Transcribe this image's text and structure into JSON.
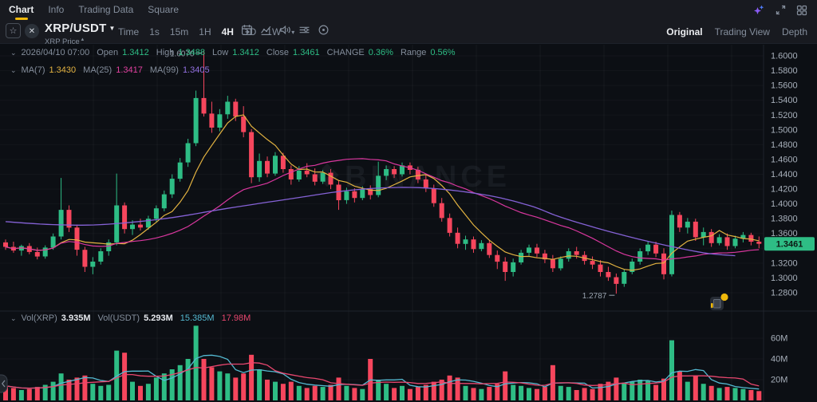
{
  "header": {
    "tabs": [
      {
        "label": "Chart",
        "active": true
      },
      {
        "label": "Info",
        "active": false
      },
      {
        "label": "Trading Data",
        "active": false
      },
      {
        "label": "Square",
        "active": false
      }
    ],
    "icons": [
      "ai-sparkle-icon",
      "resize-icon",
      "layout-grid-icon"
    ]
  },
  "toolbar": {
    "symbol": "XRP/USDT",
    "symbol_sub": "XRP Price",
    "intervals": [
      "Time",
      "1s",
      "15m",
      "1H",
      "4H",
      "1D",
      "1W"
    ],
    "active_interval": "4H",
    "icons": [
      "calendar-icon",
      "chart-style-icon",
      "sound-icon",
      "indicator-settings-icon",
      "target-icon"
    ],
    "view_modes": [
      {
        "label": "Original",
        "active": true
      },
      {
        "label": "Trading View",
        "active": false
      },
      {
        "label": "Depth",
        "active": false
      }
    ]
  },
  "ohlc": {
    "datetime": "2026/04/10 07:00",
    "open_label": "Open",
    "open": "1.3412",
    "high_label": "High",
    "high": "1.3488",
    "low_label": "Low",
    "low": "1.3412",
    "close_label": "Close",
    "close": "1.3461",
    "change_label": "CHANGE",
    "change": "0.36%",
    "range_label": "Range",
    "range": "0.56%"
  },
  "ma_row": {
    "ma7_label": "MA(7)",
    "ma7": "1.3430",
    "ma25_label": "MA(25)",
    "ma25": "1.3417",
    "ma99_label": "MA(99)",
    "ma99": "1.3405"
  },
  "vol_row": {
    "vol_xrp_label": "Vol(XRP)",
    "vol_xrp": "3.935M",
    "vol_usdt_label": "Vol(USDT)",
    "vol_usdt": "5.293M",
    "vol_ma1": "15.385M",
    "vol_ma2": "17.98M"
  },
  "chart_data": {
    "type": "candlestick",
    "symbol": "XRP/USDT",
    "interval": "4H",
    "watermark": "BINANCE",
    "last_price": "1.3461",
    "high_annotation": "1.6070",
    "low_annotation": "1.2787",
    "price_axis_ticks": [
      "1.6000",
      "1.5800",
      "1.5600",
      "1.5400",
      "1.5200",
      "1.5000",
      "1.4800",
      "1.4600",
      "1.4400",
      "1.4200",
      "1.4000",
      "1.3800",
      "1.3600",
      "1.3200",
      "1.3000",
      "1.2800"
    ],
    "price_axis_range": [
      1.28,
      1.6
    ],
    "volume_axis_ticks": [
      "60M",
      "40M",
      "20M"
    ],
    "colors": {
      "up": "#2ebd85",
      "down": "#f6465d",
      "ma7": "#e3b341",
      "ma25": "#d9379e",
      "ma99": "#8562d6",
      "vol_ma_fast": "#54b9d1",
      "vol_ma_slow": "#e8476f",
      "accent": "#f0b90b",
      "badge_bg": "#2ebd85"
    },
    "candles_format": [
      "open",
      "high",
      "low",
      "close",
      "volume_M"
    ],
    "candles": [
      [
        1.348,
        1.352,
        1.338,
        1.342,
        14
      ],
      [
        1.342,
        1.349,
        1.334,
        1.337,
        12
      ],
      [
        1.337,
        1.345,
        1.33,
        1.343,
        10
      ],
      [
        1.343,
        1.347,
        1.332,
        1.335,
        11
      ],
      [
        1.335,
        1.341,
        1.325,
        1.329,
        13
      ],
      [
        1.329,
        1.344,
        1.326,
        1.341,
        15
      ],
      [
        1.341,
        1.36,
        1.338,
        1.356,
        18
      ],
      [
        1.356,
        1.435,
        1.352,
        1.392,
        26
      ],
      [
        1.392,
        1.398,
        1.362,
        1.368,
        20
      ],
      [
        1.368,
        1.372,
        1.33,
        1.338,
        22
      ],
      [
        1.338,
        1.342,
        1.308,
        1.315,
        24
      ],
      [
        1.315,
        1.328,
        1.305,
        1.322,
        16
      ],
      [
        1.322,
        1.34,
        1.318,
        1.336,
        14
      ],
      [
        1.336,
        1.352,
        1.33,
        1.348,
        15
      ],
      [
        1.348,
        1.441,
        1.344,
        1.398,
        48
      ],
      [
        1.398,
        1.402,
        1.36,
        1.366,
        46
      ],
      [
        1.366,
        1.378,
        1.358,
        1.372,
        18
      ],
      [
        1.372,
        1.38,
        1.364,
        1.368,
        14
      ],
      [
        1.368,
        1.384,
        1.365,
        1.38,
        16
      ],
      [
        1.38,
        1.398,
        1.376,
        1.394,
        22
      ],
      [
        1.394,
        1.418,
        1.39,
        1.413,
        26
      ],
      [
        1.413,
        1.44,
        1.408,
        1.434,
        30
      ],
      [
        1.434,
        1.462,
        1.43,
        1.456,
        34
      ],
      [
        1.456,
        1.488,
        1.45,
        1.482,
        40
      ],
      [
        1.482,
        1.553,
        1.478,
        1.543,
        72
      ],
      [
        1.543,
        1.607,
        1.518,
        1.522,
        40
      ],
      [
        1.522,
        1.538,
        1.496,
        1.503,
        32
      ],
      [
        1.503,
        1.528,
        1.498,
        1.521,
        28
      ],
      [
        1.521,
        1.546,
        1.515,
        1.538,
        26
      ],
      [
        1.538,
        1.542,
        1.512,
        1.518,
        22
      ],
      [
        1.518,
        1.532,
        1.49,
        1.497,
        26
      ],
      [
        1.497,
        1.501,
        1.428,
        1.436,
        44
      ],
      [
        1.436,
        1.468,
        1.43,
        1.458,
        30
      ],
      [
        1.458,
        1.464,
        1.436,
        1.441,
        20
      ],
      [
        1.441,
        1.47,
        1.438,
        1.465,
        18
      ],
      [
        1.465,
        1.469,
        1.442,
        1.447,
        16
      ],
      [
        1.447,
        1.452,
        1.426,
        1.433,
        18
      ],
      [
        1.433,
        1.451,
        1.43,
        1.445,
        14
      ],
      [
        1.445,
        1.455,
        1.436,
        1.44,
        12
      ],
      [
        1.44,
        1.448,
        1.425,
        1.43,
        14
      ],
      [
        1.43,
        1.446,
        1.427,
        1.442,
        13
      ],
      [
        1.442,
        1.447,
        1.42,
        1.426,
        15
      ],
      [
        1.426,
        1.432,
        1.392,
        1.405,
        22
      ],
      [
        1.405,
        1.422,
        1.4,
        1.417,
        14
      ],
      [
        1.417,
        1.421,
        1.402,
        1.408,
        12
      ],
      [
        1.408,
        1.424,
        1.405,
        1.42,
        11
      ],
      [
        1.42,
        1.425,
        1.406,
        1.412,
        40
      ],
      [
        1.412,
        1.457,
        1.409,
        1.438,
        20
      ],
      [
        1.438,
        1.452,
        1.432,
        1.447,
        16
      ],
      [
        1.447,
        1.451,
        1.435,
        1.44,
        12
      ],
      [
        1.44,
        1.456,
        1.437,
        1.452,
        14
      ],
      [
        1.452,
        1.456,
        1.44,
        1.446,
        11
      ],
      [
        1.446,
        1.45,
        1.428,
        1.433,
        13
      ],
      [
        1.433,
        1.44,
        1.416,
        1.421,
        15
      ],
      [
        1.421,
        1.426,
        1.396,
        1.401,
        18
      ],
      [
        1.401,
        1.408,
        1.376,
        1.381,
        20
      ],
      [
        1.381,
        1.387,
        1.356,
        1.361,
        24
      ],
      [
        1.361,
        1.368,
        1.34,
        1.346,
        22
      ],
      [
        1.346,
        1.357,
        1.338,
        1.352,
        14
      ],
      [
        1.352,
        1.356,
        1.334,
        1.339,
        12
      ],
      [
        1.339,
        1.351,
        1.336,
        1.347,
        11
      ],
      [
        1.347,
        1.351,
        1.327,
        1.331,
        13
      ],
      [
        1.331,
        1.337,
        1.312,
        1.322,
        16
      ],
      [
        1.322,
        1.328,
        1.296,
        1.308,
        28
      ],
      [
        1.308,
        1.326,
        1.302,
        1.321,
        15
      ],
      [
        1.321,
        1.338,
        1.318,
        1.334,
        14
      ],
      [
        1.334,
        1.345,
        1.33,
        1.341,
        12
      ],
      [
        1.341,
        1.346,
        1.328,
        1.333,
        11
      ],
      [
        1.333,
        1.338,
        1.32,
        1.325,
        13
      ],
      [
        1.325,
        1.331,
        1.308,
        1.313,
        34
      ],
      [
        1.313,
        1.329,
        1.31,
        1.326,
        14
      ],
      [
        1.326,
        1.34,
        1.322,
        1.336,
        13
      ],
      [
        1.336,
        1.342,
        1.326,
        1.331,
        10
      ],
      [
        1.331,
        1.336,
        1.318,
        1.323,
        12
      ],
      [
        1.323,
        1.329,
        1.312,
        1.318,
        11
      ],
      [
        1.318,
        1.324,
        1.302,
        1.308,
        16
      ],
      [
        1.308,
        1.315,
        1.296,
        1.301,
        18
      ],
      [
        1.301,
        1.306,
        1.2787,
        1.292,
        22
      ],
      [
        1.292,
        1.312,
        1.288,
        1.308,
        17
      ],
      [
        1.308,
        1.326,
        1.305,
        1.322,
        18
      ],
      [
        1.322,
        1.34,
        1.318,
        1.336,
        20
      ],
      [
        1.336,
        1.35,
        1.331,
        1.345,
        19
      ],
      [
        1.345,
        1.349,
        1.328,
        1.333,
        15
      ],
      [
        1.333,
        1.34,
        1.298,
        1.305,
        21
      ],
      [
        1.305,
        1.391,
        1.302,
        1.385,
        58
      ],
      [
        1.385,
        1.389,
        1.362,
        1.368,
        28
      ],
      [
        1.368,
        1.381,
        1.36,
        1.376,
        18
      ],
      [
        1.376,
        1.38,
        1.35,
        1.355,
        24
      ],
      [
        1.355,
        1.368,
        1.344,
        1.362,
        16
      ],
      [
        1.362,
        1.366,
        1.342,
        1.347,
        14
      ],
      [
        1.347,
        1.359,
        1.344,
        1.355,
        12
      ],
      [
        1.355,
        1.36,
        1.338,
        1.343,
        13
      ],
      [
        1.343,
        1.357,
        1.34,
        1.353,
        12
      ],
      [
        1.353,
        1.362,
        1.348,
        1.358,
        11
      ],
      [
        1.358,
        1.361,
        1.344,
        1.349,
        10
      ],
      [
        1.349,
        1.356,
        1.34,
        1.3461,
        9
      ]
    ],
    "ma99_points": [
      [
        0,
        1.376
      ],
      [
        6,
        1.372
      ],
      [
        12,
        1.372
      ],
      [
        20,
        1.38
      ],
      [
        28,
        1.394
      ],
      [
        36,
        1.407
      ],
      [
        44,
        1.419
      ],
      [
        52,
        1.422
      ],
      [
        60,
        1.413
      ],
      [
        66,
        1.398
      ],
      [
        70,
        1.382
      ],
      [
        76,
        1.363
      ],
      [
        82,
        1.347
      ],
      [
        88,
        1.334
      ],
      [
        92,
        1.33
      ]
    ]
  }
}
